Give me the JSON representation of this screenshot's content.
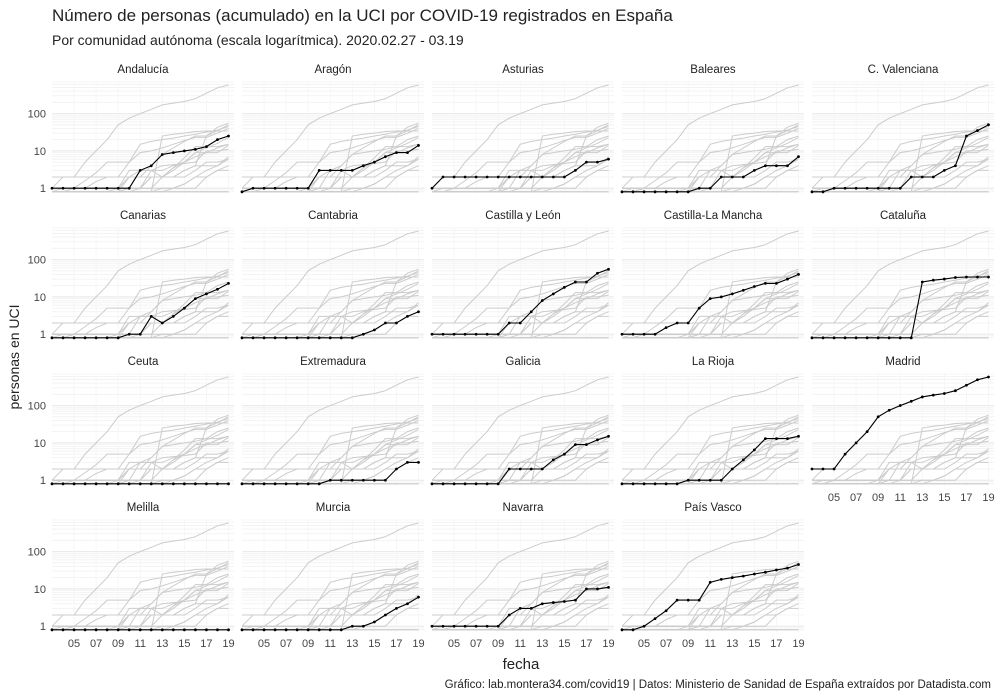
{
  "chart_data": {
    "type": "line",
    "title": "Número de personas (acumulado) en la UCI por COVID-19 registrados en España",
    "subtitle": "Por comunidad autónoma (escala logarítmica). 2020.02.27 - 03.19",
    "xlabel": "fecha",
    "ylabel": "personas en UCI",
    "caption": "Gráfico: lab.montera34.com/covid19 | Datos: Ministerio de Sanidad de España extraídos por Datadista.com",
    "y_scale": "log",
    "ylim": [
      0.7,
      700
    ],
    "y_ticks": [
      1,
      10,
      100
    ],
    "y_tick_labels": [
      "1",
      "10",
      "100"
    ],
    "xlim": [
      3,
      19.5
    ],
    "x_ticks": [
      5,
      7,
      9,
      11,
      13,
      15,
      17,
      19
    ],
    "x_tick_labels": [
      "05",
      "07",
      "09",
      "11",
      "13",
      "15",
      "17",
      "19"
    ],
    "x_unit": "day of March 2020",
    "colors": {
      "highlight": "#000000",
      "background_lines": "#cccccc",
      "grid": "#ebebeb"
    },
    "series": [
      {
        "name": "Andalucía",
        "x": [
          3,
          4,
          5,
          6,
          7,
          8,
          9,
          10,
          11,
          12,
          13,
          14,
          15,
          16,
          17,
          18,
          19
        ],
        "values": [
          1,
          1,
          1,
          1,
          1,
          1,
          1,
          1,
          3,
          4,
          8,
          9,
          10,
          11,
          13,
          20,
          25
        ]
      },
      {
        "name": "Aragón",
        "x": [
          3,
          4,
          5,
          6,
          7,
          8,
          9,
          10,
          11,
          12,
          13,
          14,
          15,
          16,
          17,
          18,
          19
        ],
        "values": [
          0.8,
          1,
          1,
          1,
          1,
          1,
          1,
          3,
          3,
          3,
          3,
          4,
          5,
          7,
          9,
          9,
          14
        ]
      },
      {
        "name": "Asturias",
        "x": [
          3,
          4,
          5,
          6,
          7,
          8,
          9,
          10,
          11,
          12,
          13,
          14,
          15,
          16,
          17,
          18,
          19
        ],
        "values": [
          1,
          2,
          2,
          2,
          2,
          2,
          2,
          2,
          2,
          2,
          2,
          2,
          2,
          3,
          5,
          5,
          6
        ]
      },
      {
        "name": "Baleares",
        "x": [
          3,
          4,
          5,
          6,
          7,
          8,
          9,
          10,
          11,
          12,
          13,
          14,
          15,
          16,
          17,
          18,
          19
        ],
        "values": [
          0.8,
          0.8,
          0.8,
          0.8,
          0.8,
          0.8,
          0.8,
          1,
          1,
          2,
          2,
          2,
          3,
          4,
          4,
          4,
          7
        ]
      },
      {
        "name": "C. Valenciana",
        "x": [
          3,
          4,
          5,
          6,
          7,
          8,
          9,
          10,
          11,
          12,
          13,
          14,
          15,
          16,
          17,
          18,
          19
        ],
        "values": [
          0.8,
          0.8,
          1,
          1,
          1,
          1,
          1,
          1,
          1,
          2,
          2,
          2,
          3,
          4,
          25,
          35,
          50
        ]
      },
      {
        "name": "Canarias",
        "x": [
          3,
          4,
          5,
          6,
          7,
          8,
          9,
          10,
          11,
          12,
          13,
          14,
          15,
          16,
          17,
          18,
          19
        ],
        "values": [
          0.8,
          0.8,
          0.8,
          0.8,
          0.8,
          0.8,
          0.8,
          1,
          1,
          3,
          2,
          3,
          5,
          9,
          12,
          16,
          23
        ]
      },
      {
        "name": "Cantabria",
        "x": [
          3,
          4,
          5,
          6,
          7,
          8,
          9,
          10,
          11,
          12,
          13,
          14,
          15,
          16,
          17,
          18,
          19
        ],
        "values": [
          0.8,
          0.8,
          0.8,
          0.8,
          0.8,
          0.8,
          0.8,
          0.8,
          0.8,
          0.8,
          0.8,
          1,
          1.3,
          2,
          2,
          3,
          4
        ]
      },
      {
        "name": "Castilla y León",
        "x": [
          3,
          4,
          5,
          6,
          7,
          8,
          9,
          10,
          11,
          12,
          13,
          14,
          15,
          16,
          17,
          18,
          19
        ],
        "values": [
          1,
          1,
          1,
          1,
          1,
          1,
          1,
          2,
          2,
          4,
          8,
          12,
          18,
          25,
          25,
          43,
          55
        ]
      },
      {
        "name": "Castilla-La Mancha",
        "x": [
          3,
          4,
          5,
          6,
          7,
          8,
          9,
          10,
          11,
          12,
          13,
          14,
          15,
          16,
          17,
          18,
          19
        ],
        "values": [
          1,
          1,
          1,
          1,
          1.5,
          2,
          2,
          5,
          9,
          10,
          12,
          15,
          19,
          23,
          23,
          30,
          40
        ]
      },
      {
        "name": "Cataluña",
        "x": [
          3,
          4,
          5,
          6,
          7,
          8,
          9,
          10,
          11,
          12,
          13,
          14,
          15,
          16,
          17,
          18,
          19
        ],
        "values": [
          0.8,
          0.8,
          0.8,
          0.8,
          0.8,
          0.8,
          0.8,
          0.8,
          0.8,
          0.8,
          25,
          28,
          30,
          33,
          34,
          34,
          34
        ]
      },
      {
        "name": "Ceuta",
        "x": [
          3,
          4,
          5,
          6,
          7,
          8,
          9,
          10,
          11,
          12,
          13,
          14,
          15,
          16,
          17,
          18,
          19
        ],
        "values": [
          0.8,
          0.8,
          0.8,
          0.8,
          0.8,
          0.8,
          0.8,
          0.8,
          0.8,
          0.8,
          0.8,
          0.8,
          0.8,
          0.8,
          0.8,
          0.8,
          0.8
        ]
      },
      {
        "name": "Extremadura",
        "x": [
          3,
          4,
          5,
          6,
          7,
          8,
          9,
          10,
          11,
          12,
          13,
          14,
          15,
          16,
          17,
          18,
          19
        ],
        "values": [
          0.8,
          0.8,
          0.8,
          0.8,
          0.8,
          0.8,
          0.8,
          0.8,
          1,
          1,
          1,
          1,
          1,
          1,
          2,
          3,
          3
        ]
      },
      {
        "name": "Galicia",
        "x": [
          3,
          4,
          5,
          6,
          7,
          8,
          9,
          10,
          11,
          12,
          13,
          14,
          15,
          16,
          17,
          18,
          19
        ],
        "values": [
          0.8,
          0.8,
          0.8,
          0.8,
          0.8,
          0.8,
          0.8,
          2,
          2,
          2,
          2,
          3.5,
          5,
          9,
          9,
          12,
          15
        ]
      },
      {
        "name": "La Rioja",
        "x": [
          3,
          4,
          5,
          6,
          7,
          8,
          9,
          10,
          11,
          12,
          13,
          14,
          15,
          16,
          17,
          18,
          19
        ],
        "values": [
          0.8,
          0.8,
          0.8,
          0.8,
          0.8,
          0.8,
          1,
          1,
          1,
          1,
          2,
          3.5,
          6.5,
          13,
          13,
          13,
          15
        ]
      },
      {
        "name": "Madrid",
        "x": [
          3,
          4,
          5,
          6,
          7,
          8,
          9,
          10,
          11,
          12,
          13,
          14,
          15,
          16,
          17,
          18,
          19
        ],
        "values": [
          2,
          2,
          2,
          5,
          10,
          20,
          50,
          75,
          100,
          130,
          170,
          190,
          210,
          250,
          350,
          490,
          580
        ]
      },
      {
        "name": "Melilla",
        "x": [
          3,
          4,
          5,
          6,
          7,
          8,
          9,
          10,
          11,
          12,
          13,
          14,
          15,
          16,
          17,
          18,
          19
        ],
        "values": [
          0.8,
          0.8,
          0.8,
          0.8,
          0.8,
          0.8,
          0.8,
          0.8,
          0.8,
          0.8,
          0.8,
          0.8,
          0.8,
          0.8,
          0.8,
          0.8,
          0.8
        ]
      },
      {
        "name": "Murcia",
        "x": [
          3,
          4,
          5,
          6,
          7,
          8,
          9,
          10,
          11,
          12,
          13,
          14,
          15,
          16,
          17,
          18,
          19
        ],
        "values": [
          0.8,
          0.8,
          0.8,
          0.8,
          0.8,
          0.8,
          0.8,
          0.8,
          0.8,
          0.8,
          1,
          1,
          1.3,
          2,
          3,
          4,
          6
        ]
      },
      {
        "name": "Navarra",
        "x": [
          3,
          4,
          5,
          6,
          7,
          8,
          9,
          10,
          11,
          12,
          13,
          14,
          15,
          16,
          17,
          18,
          19
        ],
        "values": [
          1,
          1,
          1,
          1,
          1,
          1,
          1,
          2,
          3,
          3,
          4,
          4.3,
          4.6,
          5,
          10,
          10,
          11
        ]
      },
      {
        "name": "País Vasco",
        "x": [
          3,
          4,
          5,
          6,
          7,
          8,
          9,
          10,
          11,
          12,
          13,
          14,
          15,
          16,
          17,
          18,
          19
        ],
        "values": [
          0.8,
          0.8,
          1,
          1.6,
          2.6,
          5,
          5,
          5,
          15,
          18,
          20,
          22,
          25,
          28,
          32,
          36,
          45
        ]
      }
    ]
  }
}
